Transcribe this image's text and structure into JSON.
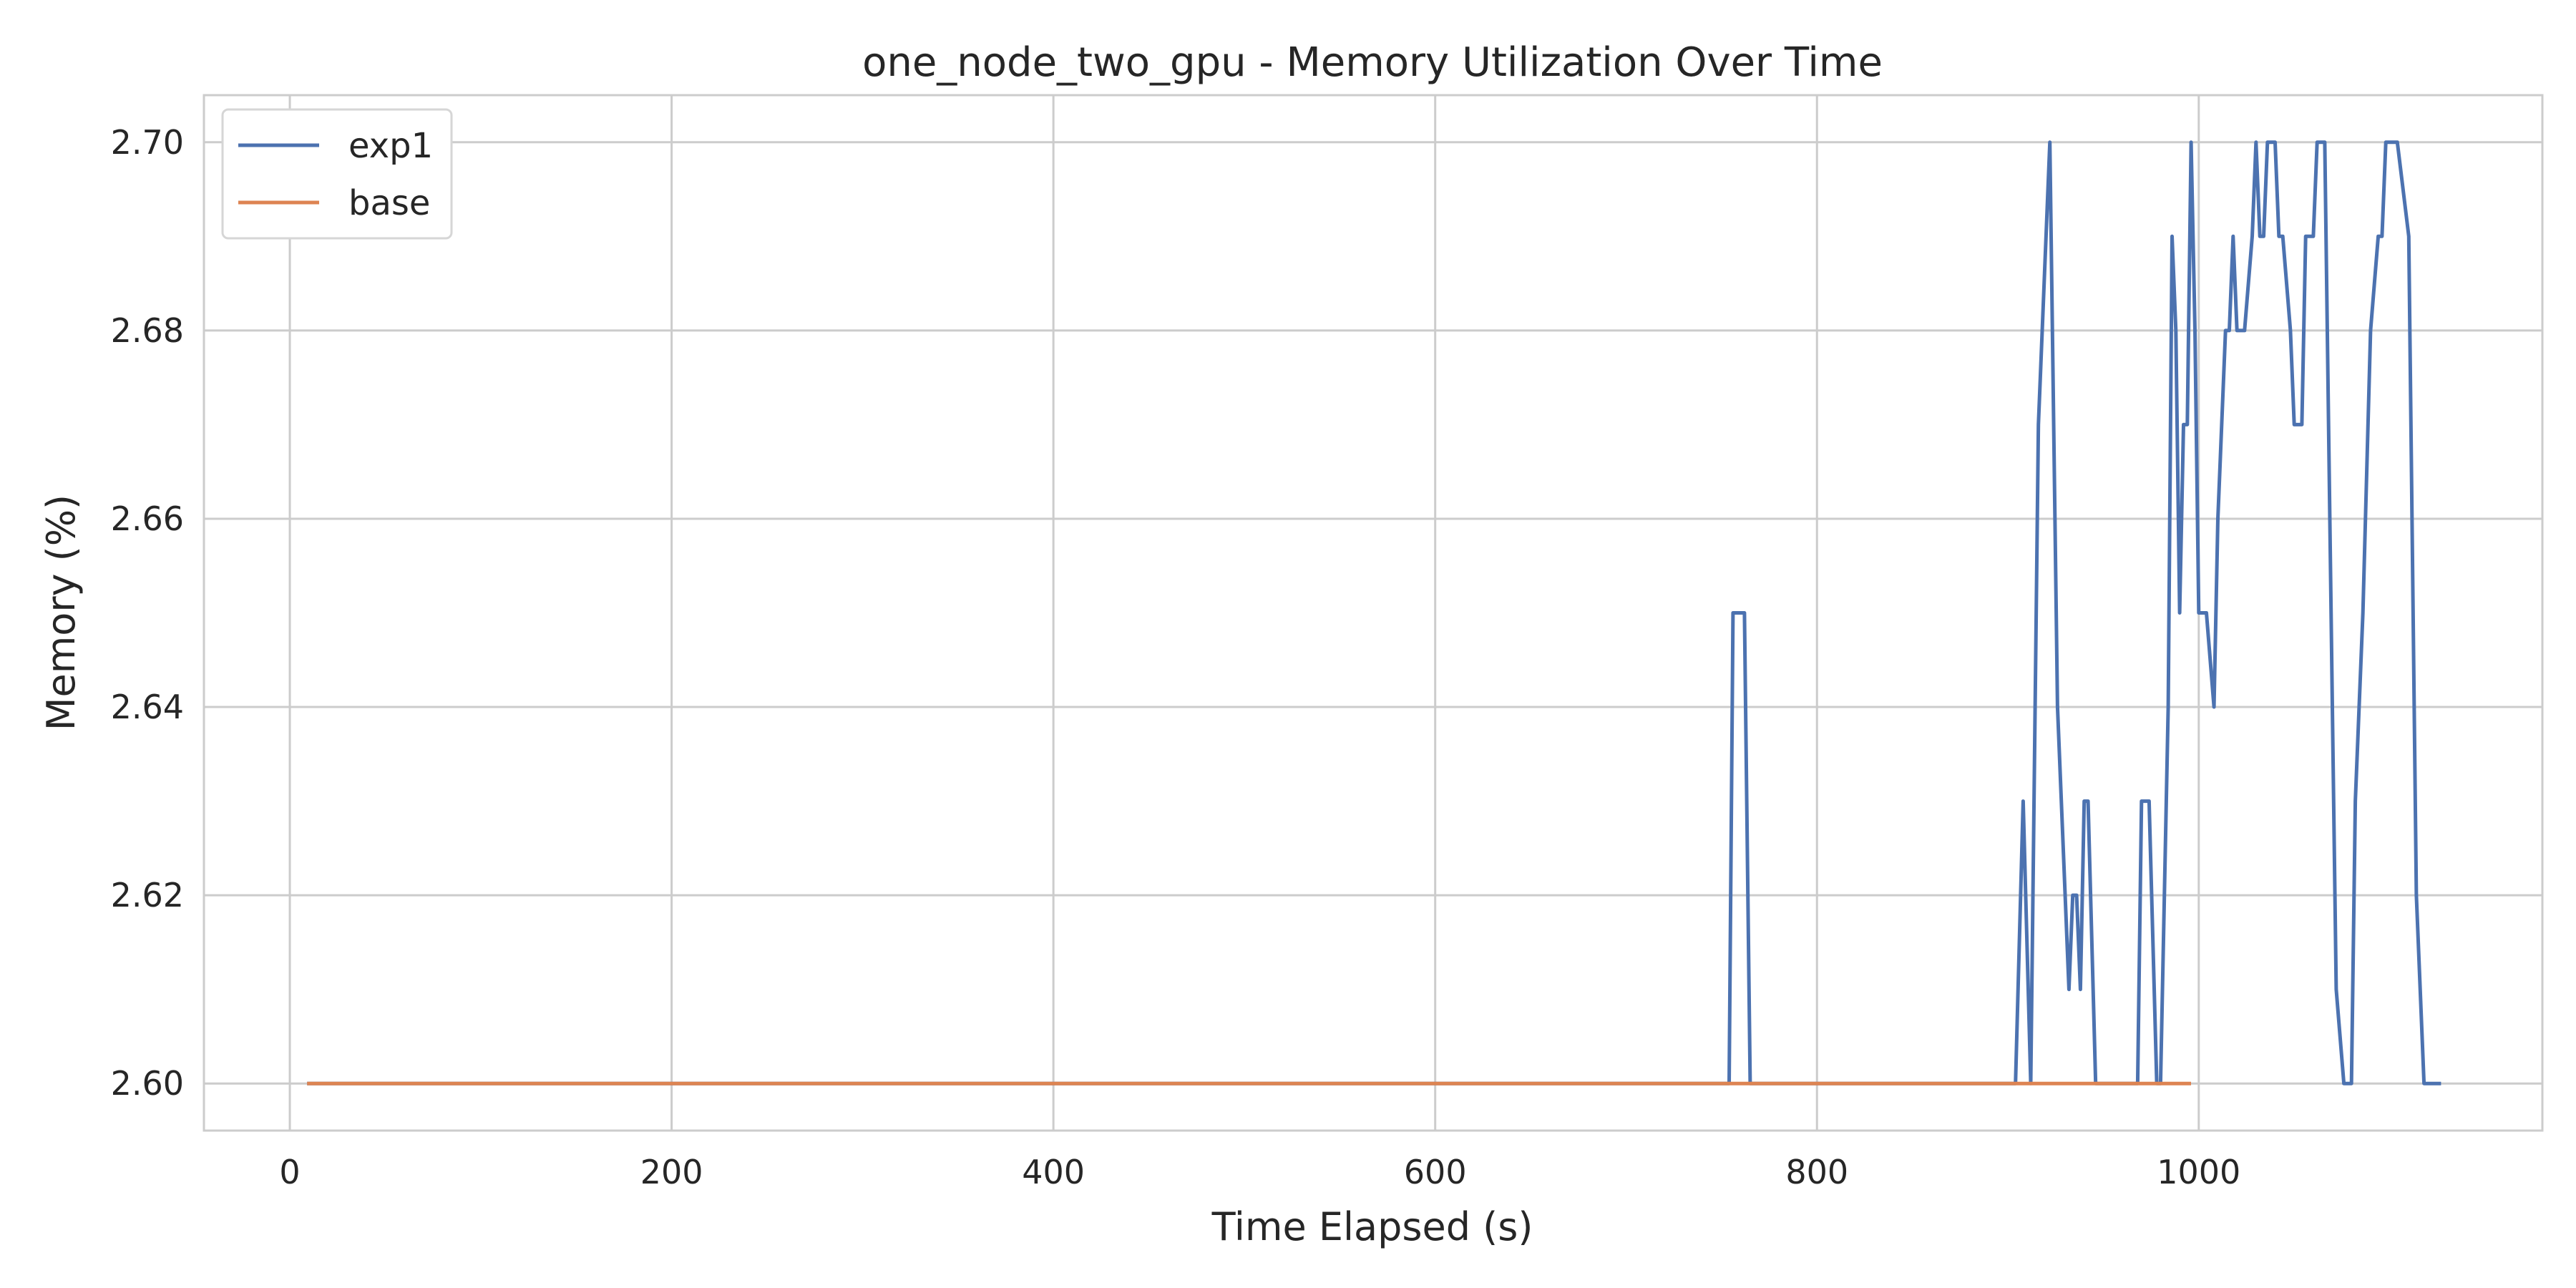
{
  "chart_data": {
    "type": "line",
    "title": "one_node_two_gpu - Memory Utilization Over Time",
    "xlabel": "Time Elapsed (s)",
    "ylabel": "Memory (%)",
    "xlim": [
      -45,
      1180
    ],
    "ylim": [
      2.595,
      2.705
    ],
    "xticks": [
      0,
      200,
      400,
      600,
      800,
      1000
    ],
    "xtick_labels": [
      "0",
      "200",
      "400",
      "600",
      "800",
      "1000"
    ],
    "yticks": [
      2.6,
      2.62,
      2.64,
      2.66,
      2.68,
      2.7
    ],
    "ytick_labels": [
      "2.60",
      "2.62",
      "2.64",
      "2.66",
      "2.68",
      "2.70"
    ],
    "grid": true,
    "legend_position": "top-left",
    "series": [
      {
        "name": "exp1",
        "color": "#4c72b0",
        "x": [
          10,
          754,
          756,
          762,
          765,
          904,
          908,
          912,
          916,
          922,
          926,
          932,
          934,
          936,
          938,
          940,
          942,
          946,
          968,
          970,
          974,
          978,
          980,
          984,
          986,
          988,
          990,
          992,
          994,
          996,
          998,
          1000,
          1004,
          1008,
          1010,
          1014,
          1016,
          1018,
          1020,
          1024,
          1028,
          1030,
          1032,
          1034,
          1036,
          1040,
          1042,
          1044,
          1048,
          1050,
          1054,
          1056,
          1060,
          1062,
          1064,
          1066,
          1070,
          1072,
          1076,
          1080,
          1082,
          1086,
          1090,
          1094,
          1096,
          1098,
          1100,
          1102,
          1104,
          1110,
          1114,
          1118,
          1122,
          1126
        ],
        "y": [
          2.6,
          2.6,
          2.65,
          2.65,
          2.6,
          2.6,
          2.63,
          2.6,
          2.67,
          2.7,
          2.64,
          2.61,
          2.62,
          2.62,
          2.61,
          2.63,
          2.63,
          2.6,
          2.6,
          2.63,
          2.63,
          2.6,
          2.6,
          2.64,
          2.69,
          2.68,
          2.65,
          2.67,
          2.67,
          2.7,
          2.68,
          2.65,
          2.65,
          2.64,
          2.66,
          2.68,
          2.68,
          2.69,
          2.68,
          2.68,
          2.69,
          2.7,
          2.69,
          2.69,
          2.7,
          2.7,
          2.69,
          2.69,
          2.68,
          2.67,
          2.67,
          2.69,
          2.69,
          2.7,
          2.7,
          2.7,
          2.64,
          2.61,
          2.6,
          2.6,
          2.63,
          2.65,
          2.68,
          2.69,
          2.69,
          2.7,
          2.7,
          2.7,
          2.7,
          2.69,
          2.62,
          2.6,
          2.6,
          2.6
        ]
      },
      {
        "name": "base",
        "color": "#dd8452",
        "x": [
          10,
          995
        ],
        "y": [
          2.6,
          2.6
        ]
      }
    ]
  }
}
